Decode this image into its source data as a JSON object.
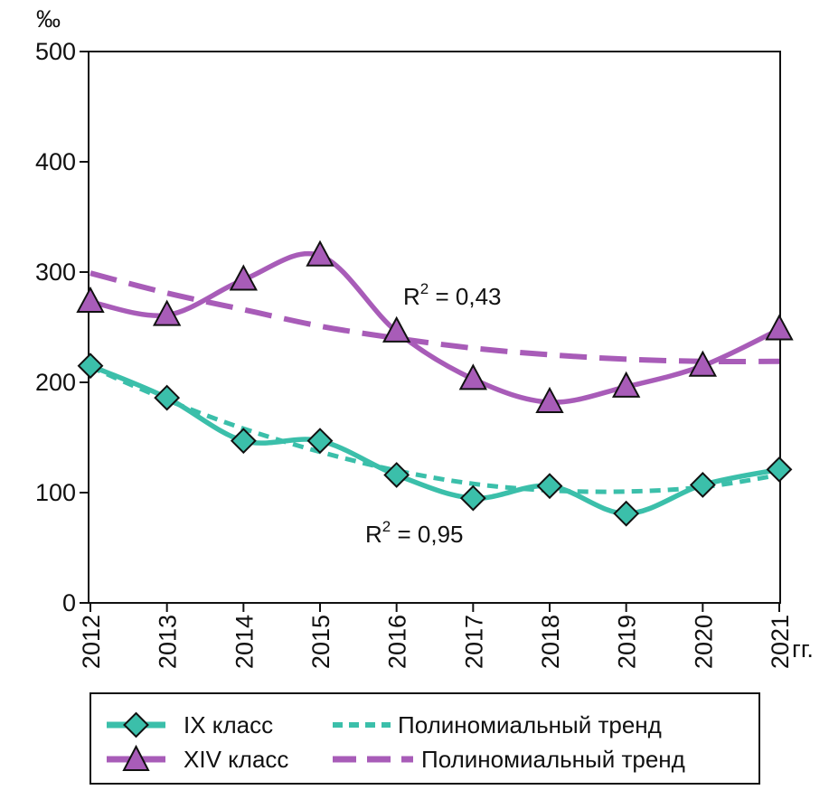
{
  "chart_data": {
    "type": "line",
    "ylabel": "‰",
    "x_unit": "гг.",
    "ylim": [
      0,
      500
    ],
    "yticks": [
      0,
      100,
      200,
      300,
      400,
      500
    ],
    "x": [
      "2012",
      "2013",
      "2014",
      "2015",
      "2016",
      "2017",
      "2018",
      "2019",
      "2020",
      "2021"
    ],
    "grid": false,
    "legend_position": "bottom",
    "series": [
      {
        "name": "IX класс",
        "kind": "data",
        "marker": "diamond",
        "color": "#3bbfaa",
        "values": [
          215,
          186,
          147,
          147,
          116,
          95,
          106,
          81,
          107,
          121
        ]
      },
      {
        "name": "XIV класс",
        "kind": "data",
        "marker": "triangle",
        "color": "#a85cb8",
        "values": [
          273,
          261,
          293,
          315,
          246,
          203,
          182,
          196,
          215,
          248
        ]
      },
      {
        "name": "Полиномиальный тренд",
        "kind": "trend",
        "of": "IX класс",
        "style": "short-dash",
        "color": "#3bbfaa",
        "values": [
          214,
          184,
          158,
          137,
          120,
          108,
          102,
          101,
          105,
          116
        ]
      },
      {
        "name": "Полиномиальный тренд",
        "kind": "trend",
        "of": "XIV класс",
        "style": "long-dash",
        "color": "#a85cb8",
        "values": [
          299,
          281,
          266,
          251,
          240,
          231,
          225,
          221,
          219,
          219
        ]
      }
    ],
    "annotations": [
      {
        "base": "R",
        "sup": "2",
        "rest": " = 0,43",
        "series": "XIV класс"
      },
      {
        "base": "R",
        "sup": "2",
        "rest": " = 0,95",
        "series": "IX класс"
      }
    ]
  },
  "legend": {
    "rows": [
      [
        {
          "label": "IX класс"
        },
        {
          "label": "Полиномиальный тренд"
        }
      ],
      [
        {
          "label": "XIV класс"
        },
        {
          "label": "Полиномиальный тренд"
        }
      ]
    ]
  }
}
